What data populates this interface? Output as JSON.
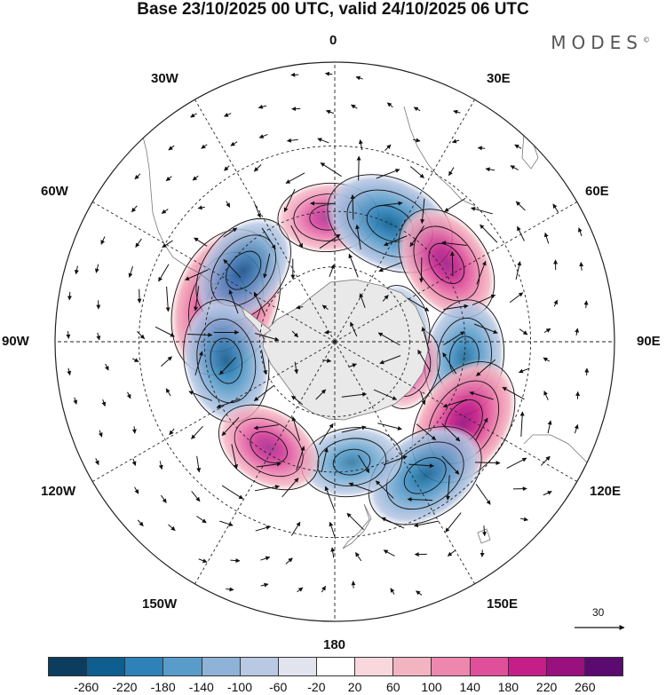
{
  "title": "Base 23/10/2025 00 UTC, valid 24/10/2025 06 UTC",
  "brand": "MODES",
  "brand_mark": "©",
  "longitude_labels": {
    "lon_0": "0",
    "lon_30e": "30E",
    "lon_60e": "60E",
    "lon_90e": "90E",
    "lon_120e": "120E",
    "lon_150e": "150E",
    "lon_180": "180",
    "lon_150w": "150W",
    "lon_120w": "120W",
    "lon_90w": "90W",
    "lon_60w": "60W",
    "lon_30w": "30W"
  },
  "reference_vector_label": "30",
  "colorbar": {
    "tick_labels": [
      "-260",
      "-220",
      "-180",
      "-140",
      "-100",
      "-60",
      "-20",
      "20",
      "60",
      "100",
      "140",
      "180",
      "220",
      "260"
    ],
    "colors": [
      "#0d3d5e",
      "#0e5f8f",
      "#2f82b8",
      "#5a9cc9",
      "#8fb3d8",
      "#b9c8e3",
      "#e1e3ef",
      "#ffffff",
      "#f8d8dd",
      "#f3b4c2",
      "#ee87ad",
      "#e0509a",
      "#c61e88",
      "#98117f",
      "#5b0a6f"
    ]
  },
  "map_features": {
    "projection": "south polar stereographic",
    "anomalies": [
      {
        "name": "anomaly-60w-pos",
        "lon": -70,
        "lat": -45,
        "value": 240
      },
      {
        "name": "anomaly-50w-neg",
        "lon": -52,
        "lat": -45,
        "value": -150
      },
      {
        "name": "anomaly-95w-neg",
        "lon": -100,
        "lat": -47,
        "value": -170
      },
      {
        "name": "anomaly-0-pos",
        "lon": -3,
        "lat": -42,
        "value": 110
      },
      {
        "name": "anomaly-25e-neg",
        "lon": 25,
        "lat": -40,
        "value": -190
      },
      {
        "name": "anomaly-50e-pos",
        "lon": 55,
        "lat": -38,
        "value": 160
      },
      {
        "name": "anomaly-90e-neg",
        "lon": 97,
        "lat": -40,
        "value": -150
      },
      {
        "name": "anomaly-120e-pos",
        "lon": 122,
        "lat": -33,
        "value": 190
      },
      {
        "name": "anomaly-150e-neg",
        "lon": 146,
        "lat": -30,
        "value": -170
      },
      {
        "name": "anomaly-170e-neg",
        "lon": 172,
        "lat": -43,
        "value": -110
      },
      {
        "name": "anomaly-145w-pos",
        "lon": -148,
        "lat": -42,
        "value": 130
      },
      {
        "name": "anomaly-110e-pos",
        "lon": 110,
        "lat": -58,
        "value": 60
      },
      {
        "name": "anomaly-70e-neg",
        "lon": 75,
        "lat": -62,
        "value": -50
      }
    ]
  }
}
